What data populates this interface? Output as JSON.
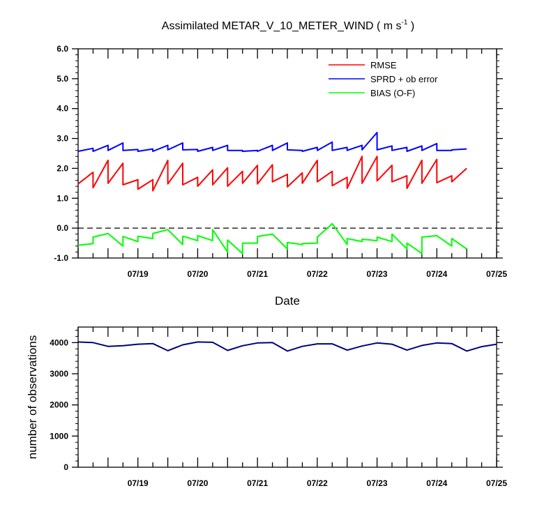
{
  "title": {
    "main": "Assimilated METAR_V_10_METER_WIND ( m s",
    "superscript": "-1",
    "close": " )"
  },
  "chart_data": [
    {
      "type": "line",
      "xlabel": "Date",
      "ylabel": "",
      "x_tick_labels": [
        "07/19",
        "07/20",
        "07/21",
        "07/22",
        "07/23",
        "07/24",
        "07/25"
      ],
      "x_range_days": [
        0,
        7
      ],
      "ylim": [
        -1.0,
        6.0
      ],
      "y_ticks": [
        -1.0,
        0.0,
        1.0,
        2.0,
        3.0,
        4.0,
        5.0,
        6.0
      ],
      "y_tick_labels": [
        "-1.0",
        "0.0",
        "1.0",
        "2.0",
        "3.0",
        "4.0",
        "5.0",
        "6.0"
      ],
      "reference_line": {
        "y": 0.0,
        "style": "dashed"
      },
      "legend_position": "top-right",
      "grid": false,
      "series": [
        {
          "name": "RMSE",
          "color": "#ff0000",
          "points": [
            [
              0.0,
              1.48
            ],
            [
              0.25,
              1.87
            ],
            [
              0.25,
              1.35
            ],
            [
              0.5,
              2.27
            ],
            [
              0.5,
              1.5
            ],
            [
              0.75,
              2.17
            ],
            [
              0.75,
              1.45
            ],
            [
              1.0,
              1.62
            ],
            [
              1.0,
              1.3
            ],
            [
              1.25,
              1.62
            ],
            [
              1.25,
              1.25
            ],
            [
              1.5,
              2.27
            ],
            [
              1.5,
              1.48
            ],
            [
              1.75,
              2.17
            ],
            [
              1.75,
              1.45
            ],
            [
              2.0,
              1.7
            ],
            [
              2.0,
              1.4
            ],
            [
              2.25,
              1.95
            ],
            [
              2.25,
              1.45
            ],
            [
              2.5,
              2.02
            ],
            [
              2.5,
              1.4
            ],
            [
              2.75,
              1.9
            ],
            [
              2.75,
              1.5
            ],
            [
              3.0,
              2.1
            ],
            [
              3.0,
              1.48
            ],
            [
              3.25,
              2.12
            ],
            [
              3.25,
              1.55
            ],
            [
              3.5,
              1.8
            ],
            [
              3.5,
              1.38
            ],
            [
              3.75,
              1.85
            ],
            [
              3.75,
              1.5
            ],
            [
              4.0,
              2.27
            ],
            [
              4.0,
              1.55
            ],
            [
              4.25,
              1.9
            ],
            [
              4.25,
              1.42
            ],
            [
              4.5,
              1.7
            ],
            [
              4.5,
              1.33
            ],
            [
              4.75,
              2.4
            ],
            [
              4.75,
              1.5
            ],
            [
              5.0,
              2.4
            ],
            [
              5.0,
              1.58
            ],
            [
              5.25,
              2.1
            ],
            [
              5.25,
              1.55
            ],
            [
              5.5,
              1.75
            ],
            [
              5.5,
              1.33
            ],
            [
              5.75,
              2.27
            ],
            [
              5.75,
              1.5
            ],
            [
              6.0,
              2.3
            ],
            [
              6.0,
              1.52
            ],
            [
              6.25,
              1.75
            ],
            [
              6.25,
              1.55
            ],
            [
              6.5,
              2.0
            ]
          ]
        },
        {
          "name": "SPRD + ob error",
          "color": "#0000ff",
          "points": [
            [
              0.0,
              2.57
            ],
            [
              0.25,
              2.67
            ],
            [
              0.25,
              2.57
            ],
            [
              0.5,
              2.77
            ],
            [
              0.5,
              2.6
            ],
            [
              0.75,
              2.85
            ],
            [
              0.75,
              2.6
            ],
            [
              1.0,
              2.63
            ],
            [
              1.0,
              2.57
            ],
            [
              1.25,
              2.65
            ],
            [
              1.25,
              2.57
            ],
            [
              1.5,
              2.77
            ],
            [
              1.5,
              2.62
            ],
            [
              1.75,
              2.85
            ],
            [
              1.75,
              2.62
            ],
            [
              2.0,
              2.63
            ],
            [
              2.0,
              2.57
            ],
            [
              2.25,
              2.7
            ],
            [
              2.25,
              2.6
            ],
            [
              2.5,
              2.77
            ],
            [
              2.5,
              2.6
            ],
            [
              2.75,
              2.6
            ],
            [
              2.75,
              2.57
            ],
            [
              3.0,
              2.6
            ],
            [
              3.0,
              2.57
            ],
            [
              3.25,
              2.77
            ],
            [
              3.25,
              2.6
            ],
            [
              3.5,
              2.85
            ],
            [
              3.5,
              2.62
            ],
            [
              3.75,
              2.6
            ],
            [
              3.75,
              2.57
            ],
            [
              4.0,
              2.7
            ],
            [
              4.0,
              2.6
            ],
            [
              4.25,
              2.88
            ],
            [
              4.25,
              2.6
            ],
            [
              4.5,
              2.7
            ],
            [
              4.5,
              2.6
            ],
            [
              4.75,
              2.77
            ],
            [
              4.75,
              2.62
            ],
            [
              5.0,
              3.2
            ],
            [
              5.0,
              2.62
            ],
            [
              5.25,
              2.75
            ],
            [
              5.25,
              2.6
            ],
            [
              5.5,
              2.7
            ],
            [
              5.5,
              2.57
            ],
            [
              5.75,
              2.75
            ],
            [
              5.75,
              2.6
            ],
            [
              6.0,
              2.83
            ],
            [
              6.0,
              2.6
            ],
            [
              6.25,
              2.6
            ],
            [
              6.25,
              2.62
            ],
            [
              6.5,
              2.65
            ]
          ]
        },
        {
          "name": "BIAS (O-F)",
          "color": "#00ff00",
          "points": [
            [
              0.0,
              -0.57
            ],
            [
              0.25,
              -0.52
            ],
            [
              0.25,
              -0.3
            ],
            [
              0.5,
              -0.18
            ],
            [
              0.75,
              -0.6
            ],
            [
              0.75,
              -0.28
            ],
            [
              1.0,
              -0.45
            ],
            [
              1.0,
              -0.27
            ],
            [
              1.25,
              -0.35
            ],
            [
              1.25,
              -0.18
            ],
            [
              1.5,
              -0.05
            ],
            [
              1.75,
              -0.55
            ],
            [
              1.75,
              -0.27
            ],
            [
              2.0,
              -0.42
            ],
            [
              2.0,
              -0.25
            ],
            [
              2.25,
              -0.42
            ],
            [
              2.25,
              -0.05
            ],
            [
              2.5,
              -0.8
            ],
            [
              2.5,
              -0.4
            ],
            [
              2.75,
              -0.85
            ],
            [
              2.75,
              -0.5
            ],
            [
              3.0,
              -0.5
            ],
            [
              3.0,
              -0.28
            ],
            [
              3.25,
              -0.2
            ],
            [
              3.5,
              -0.7
            ],
            [
              3.5,
              -0.48
            ],
            [
              3.75,
              -0.55
            ],
            [
              3.75,
              -0.52
            ],
            [
              4.0,
              -0.5
            ],
            [
              4.0,
              -0.3
            ],
            [
              4.25,
              0.15
            ],
            [
              4.5,
              -0.55
            ],
            [
              4.5,
              -0.35
            ],
            [
              4.75,
              -0.45
            ],
            [
              4.75,
              -0.37
            ],
            [
              5.0,
              -0.42
            ],
            [
              5.0,
              -0.3
            ],
            [
              5.25,
              -0.45
            ],
            [
              5.25,
              -0.2
            ],
            [
              5.5,
              -0.7
            ],
            [
              5.5,
              -0.5
            ],
            [
              5.75,
              -0.85
            ],
            [
              5.75,
              -0.3
            ],
            [
              6.0,
              -0.25
            ],
            [
              6.25,
              -0.6
            ],
            [
              6.25,
              -0.35
            ],
            [
              6.5,
              -0.7
            ]
          ]
        }
      ]
    },
    {
      "type": "line",
      "xlabel": "",
      "ylabel": "number of observations",
      "x_tick_labels": [
        "07/19",
        "07/20",
        "07/21",
        "07/22",
        "07/23",
        "07/24",
        "07/25"
      ],
      "x_range_days": [
        0,
        7
      ],
      "ylim": [
        0,
        4500
      ],
      "y_ticks": [
        0,
        1000,
        2000,
        3000,
        4000
      ],
      "y_tick_labels": [
        "0",
        "1000",
        "2000",
        "3000",
        "4000"
      ],
      "grid": false,
      "series": [
        {
          "color": "#000080",
          "x": [
            0.0,
            0.25,
            0.5,
            0.75,
            1.0,
            1.25,
            1.5,
            1.75,
            2.0,
            2.25,
            2.5,
            2.75,
            3.0,
            3.25,
            3.5,
            3.75,
            4.0,
            4.25,
            4.5,
            4.75,
            5.0,
            5.25,
            5.5,
            5.75,
            6.0,
            6.25,
            6.5,
            6.75,
            7.0
          ],
          "values": [
            4020,
            4000,
            3880,
            3900,
            3950,
            3970,
            3740,
            3930,
            4020,
            4010,
            3750,
            3900,
            3990,
            4000,
            3730,
            3880,
            3960,
            3960,
            3760,
            3890,
            3990,
            3950,
            3760,
            3910,
            3990,
            3970,
            3730,
            3870,
            3950
          ]
        }
      ]
    }
  ]
}
